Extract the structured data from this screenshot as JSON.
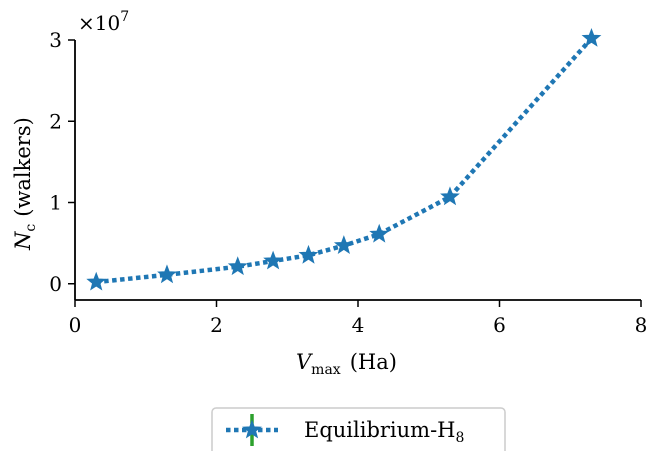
{
  "chart_data": {
    "type": "line",
    "xlabel_main": "V",
    "xlabel_sub": "max",
    "xlabel_unit": "(Ha)",
    "ylabel_main": "N",
    "ylabel_sub": "c",
    "ylabel_unit": "(walkers)",
    "y_multiplier_base": "×10",
    "y_multiplier_exp": "7",
    "xlim": [
      0,
      8
    ],
    "ylim": [
      -0.2,
      3.0
    ],
    "x_ticks": [
      "0",
      "2",
      "4",
      "6",
      "8"
    ],
    "y_ticks": [
      "0",
      "1",
      "2",
      "3"
    ],
    "grid": false,
    "legend_position": "bottom-center, below plot",
    "series": [
      {
        "name_main": "Equilibrium-H",
        "name_sub": "8",
        "color": "#1f77b4",
        "marker": "star",
        "line_style": "dotted",
        "errorbar_color": "#2ca02c",
        "x": [
          0.3,
          1.3,
          2.3,
          2.8,
          3.3,
          3.8,
          4.3,
          5.3,
          7.3
        ],
        "y": [
          0.02,
          0.11,
          0.21,
          0.28,
          0.35,
          0.47,
          0.61,
          1.07,
          3.02
        ]
      }
    ]
  }
}
